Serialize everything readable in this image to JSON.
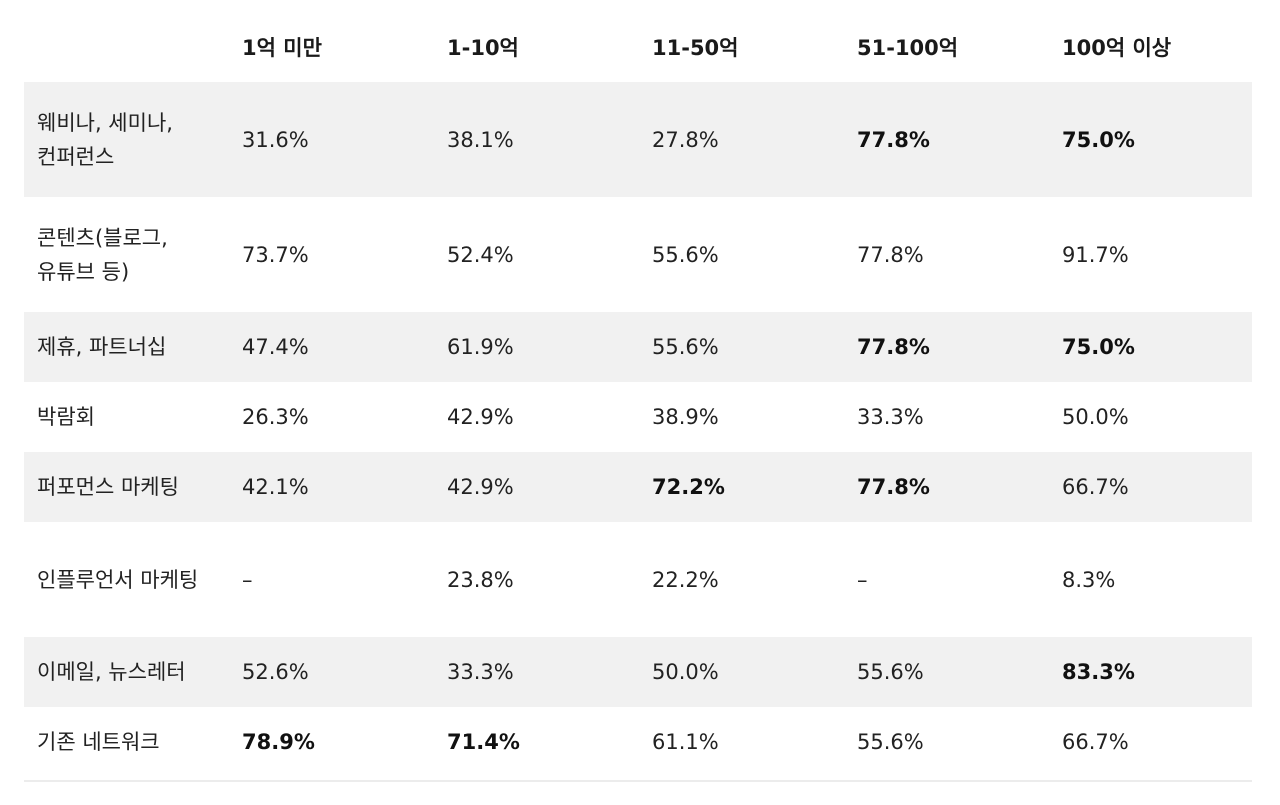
{
  "header": [
    "",
    "1억 미만",
    "1-10억",
    "11-50억",
    "51-100억",
    "100억 이상"
  ],
  "rows": [
    {
      "label": "웨비나, 세미나, 컨퍼런스",
      "values": [
        "31.6%",
        "38.1%",
        "27.8%",
        "77.8%",
        "75.0%"
      ],
      "bold": [
        false,
        false,
        false,
        true,
        true
      ]
    },
    {
      "label": "콘텐츠(블로그, 유튜브 등)",
      "values": [
        "73.7%",
        "52.4%",
        "55.6%",
        "77.8%",
        "91.7%"
      ],
      "bold": [
        false,
        false,
        false,
        false,
        false
      ]
    },
    {
      "label": "제휴, 파트너십",
      "values": [
        "47.4%",
        "61.9%",
        "55.6%",
        "77.8%",
        "75.0%"
      ],
      "bold": [
        false,
        false,
        false,
        true,
        true
      ]
    },
    {
      "label": "박람회",
      "values": [
        "26.3%",
        "42.9%",
        "38.9%",
        "33.3%",
        "50.0%"
      ],
      "bold": [
        false,
        false,
        false,
        false,
        false
      ]
    },
    {
      "label": "퍼포먼스 마케팅",
      "values": [
        "42.1%",
        "42.9%",
        "72.2%",
        "77.8%",
        "66.7%"
      ],
      "bold": [
        false,
        false,
        true,
        true,
        false
      ]
    },
    {
      "label": "인플루언서 마케팅",
      "values": [
        "–",
        "23.8%",
        "22.2%",
        "–",
        "8.3%"
      ],
      "bold": [
        false,
        false,
        false,
        false,
        false
      ]
    },
    {
      "label": "이메일, 뉴스레터",
      "values": [
        "52.6%",
        "33.3%",
        "50.0%",
        "55.6%",
        "83.3%"
      ],
      "bold": [
        false,
        false,
        false,
        false,
        true
      ]
    },
    {
      "label": "기존 네트워크",
      "values": [
        "78.9%",
        "71.4%",
        "61.1%",
        "55.6%",
        "66.7%"
      ],
      "bold": [
        true,
        true,
        false,
        false,
        false
      ]
    }
  ]
}
